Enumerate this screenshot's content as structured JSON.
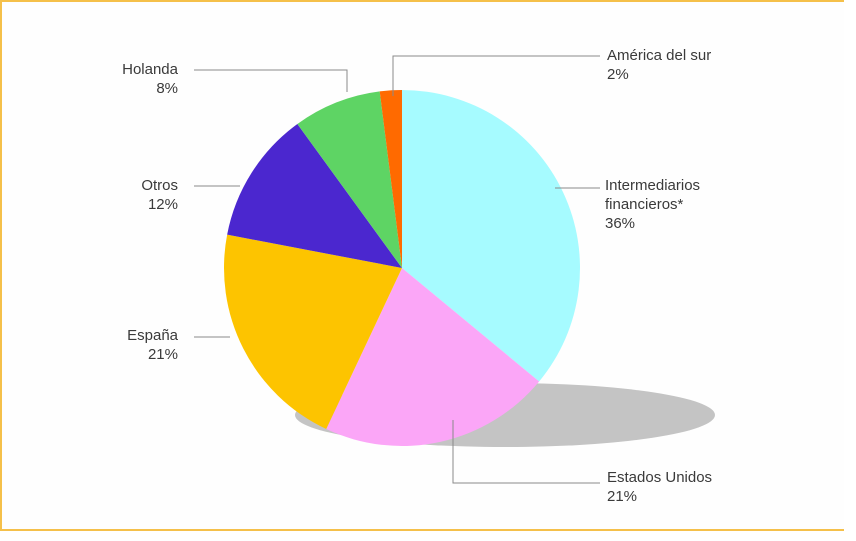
{
  "chart_data": {
    "type": "pie",
    "title": "",
    "slices": [
      {
        "label_lines": [
          "Intermediarios",
          "financieros*"
        ],
        "value_label": "36%",
        "value": 36,
        "color": "#a6fbff"
      },
      {
        "label_lines": [
          "Estados Unidos"
        ],
        "value_label": "21%",
        "value": 21,
        "color": "#fba6f7"
      },
      {
        "label_lines": [
          "España"
        ],
        "value_label": "21%",
        "value": 21,
        "color": "#fdc400"
      },
      {
        "label_lines": [
          "Otros"
        ],
        "value_label": "12%",
        "value": 12,
        "color": "#4b27cf"
      },
      {
        "label_lines": [
          "Holanda"
        ],
        "value_label": "8%",
        "value": 8,
        "color": "#5ed464"
      },
      {
        "label_lines": [
          "América del sur"
        ],
        "value_label": "2%",
        "value": 2,
        "color": "#ff6a00"
      }
    ],
    "start": "12 o'clock",
    "direction": "clockwise",
    "shadow": true
  },
  "colors": {
    "frame_border": "#f5c04a",
    "leader_line": "#8a8a8a",
    "shadow": "#c4c4c4"
  }
}
